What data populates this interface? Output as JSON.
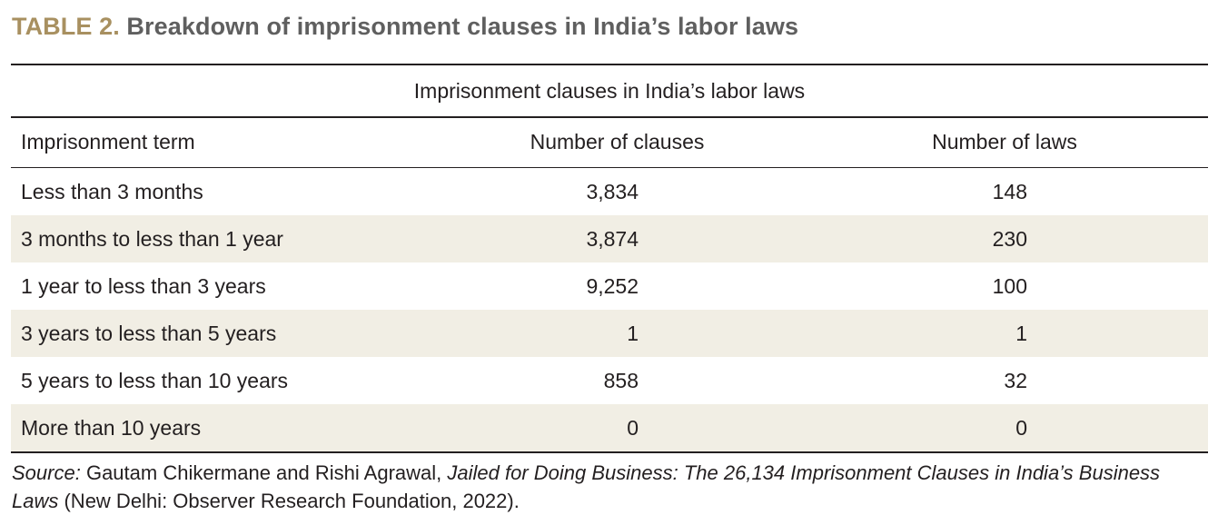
{
  "title": {
    "label": "TABLE 2.",
    "text": "Breakdown of imprisonment clauses in India’s labor laws"
  },
  "table": {
    "spanning_header": "Imprisonment clauses in India’s labor laws",
    "columns": [
      "Imprisonment term",
      "Number of clauses",
      "Number of laws"
    ],
    "rows": [
      {
        "term": "Less than 3 months",
        "clauses": "3,834",
        "laws": "148"
      },
      {
        "term": "3 months to less than 1 year",
        "clauses": "3,874",
        "laws": "230"
      },
      {
        "term": "1 year to less than 3 years",
        "clauses": "9,252",
        "laws": "100"
      },
      {
        "term": "3 years to less than 5 years",
        "clauses": "1",
        "laws": "1"
      },
      {
        "term": "5 years to less than 10 years",
        "clauses": "858",
        "laws": "32"
      },
      {
        "term": "More than 10 years",
        "clauses": "0",
        "laws": "0"
      }
    ]
  },
  "source": {
    "label": "Source:",
    "authors": "Gautam Chikermane and Rishi Agrawal,",
    "work_title": "Jailed for Doing Business: The 26,134 Imprisonment Clauses in India’s Business Laws",
    "publication": "(New Delhi: Observer Research Foundation, 2022)."
  },
  "colors": {
    "title_label": "#a89060",
    "title_text": "#5f5f5f",
    "row_shade": "#f1eee4",
    "rule": "#231f20"
  }
}
